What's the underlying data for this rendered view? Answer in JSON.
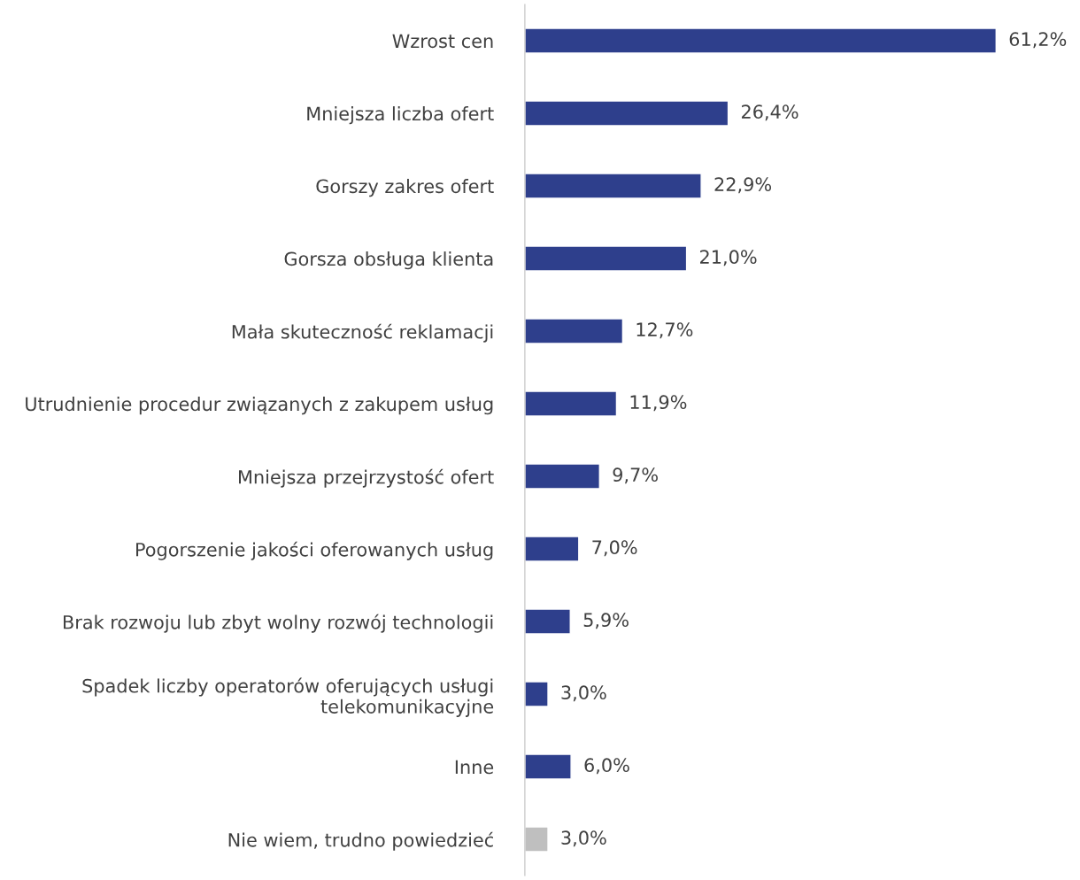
{
  "chart_data": {
    "type": "bar",
    "orientation": "horizontal",
    "categories": [
      "Wzrost cen",
      "Mniejsza liczba ofert",
      "Gorszy zakres ofert",
      "Gorsza obsługa klienta",
      "Mała skuteczność reklamacji",
      "Utrudnienie procedur związanych z zakupem usług",
      "Mniejsza przejrzystość ofert",
      "Pogorszenie jakości oferowanych usług",
      "Brak rozwoju lub zbyt wolny rozwój technologii",
      "Spadek liczby operatorów oferujących usługi\ntelekomunikacyjne",
      "Inne",
      "Nie wiem, trudno powiedzieć"
    ],
    "values": [
      61.2,
      26.4,
      22.9,
      21.0,
      12.7,
      11.9,
      9.7,
      7.0,
      5.9,
      3.0,
      6.0,
      3.0
    ],
    "value_labels": [
      "61,2%",
      "26,4%",
      "22,9%",
      "21,0%",
      "12,7%",
      "11,9%",
      "9,7%",
      "7,0%",
      "5,9%",
      "3,0%",
      "6,0%",
      "3,0%"
    ],
    "colors": [
      "#2e3f8c",
      "#2e3f8c",
      "#2e3f8c",
      "#2e3f8c",
      "#2e3f8c",
      "#2e3f8c",
      "#2e3f8c",
      "#2e3f8c",
      "#2e3f8c",
      "#2e3f8c",
      "#2e3f8c",
      "#bfbfbf"
    ],
    "grid": false,
    "legend": false
  }
}
